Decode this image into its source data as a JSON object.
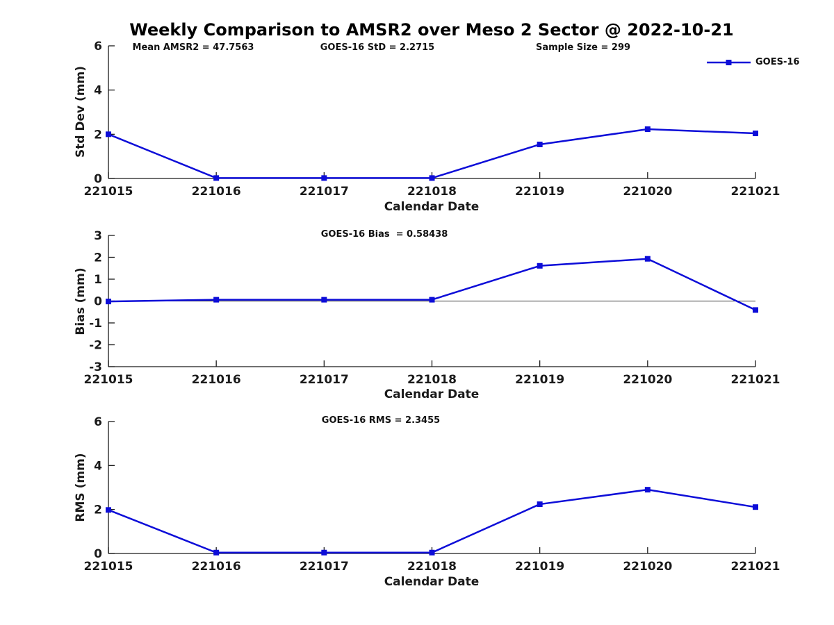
{
  "header": {
    "title": "Weekly Comparison to AMSR2 over Meso 2 Sector @ 2022-10-21",
    "stats": [
      "Mean AMSR2 = 47.7563",
      "GOES-16 StD = 2.2715",
      "Sample Size = 299"
    ]
  },
  "legend": {
    "label": "GOES-16"
  },
  "colors": {
    "series": "#0d0dd8",
    "axis": "#1a1a1a",
    "tick_text": "#1a1a1a",
    "zero_line": "#333333",
    "background": "#ffffff"
  },
  "chart_data": [
    {
      "type": "line",
      "title": "",
      "categories": [
        "221015",
        "221016",
        "221017",
        "221018",
        "221019",
        "221020",
        "221021"
      ],
      "series": [
        {
          "name": "GOES-16",
          "values": [
            2.0,
            0.02,
            0.02,
            0.02,
            1.54,
            2.23,
            2.04
          ]
        }
      ],
      "xlabel": "Calendar Date",
      "ylabel": "Std Dev (mm)",
      "ylim": [
        0,
        6
      ],
      "yticks": [
        0,
        2,
        4,
        6
      ],
      "zero_line": false,
      "grid": false,
      "legend_position": "top-right",
      "marker": "square"
    },
    {
      "type": "line",
      "title": "GOES-16 Bias  = 0.58438",
      "categories": [
        "221015",
        "221016",
        "221017",
        "221018",
        "221019",
        "221020",
        "221021"
      ],
      "series": [
        {
          "name": "GOES-16",
          "values": [
            -0.02,
            0.06,
            0.06,
            0.06,
            1.61,
            1.93,
            -0.41
          ]
        }
      ],
      "xlabel": "Calendar Date",
      "ylabel": "Bias (mm)",
      "ylim": [
        -3,
        3
      ],
      "yticks": [
        -3,
        -2,
        -1,
        0,
        1,
        2,
        3
      ],
      "zero_line": true,
      "grid": false,
      "legend_position": "none",
      "marker": "square"
    },
    {
      "type": "line",
      "title": "GOES-16 RMS = 2.3455",
      "categories": [
        "221015",
        "221016",
        "221017",
        "221018",
        "221019",
        "221020",
        "221021"
      ],
      "series": [
        {
          "name": "GOES-16",
          "values": [
            1.98,
            0.04,
            0.04,
            0.04,
            2.24,
            2.9,
            2.11
          ]
        }
      ],
      "xlabel": "Calendar Date",
      "ylabel": "RMS (mm)",
      "ylim": [
        0,
        6
      ],
      "yticks": [
        0,
        2,
        4,
        6
      ],
      "zero_line": false,
      "grid": false,
      "legend_position": "none",
      "marker": "square"
    }
  ]
}
